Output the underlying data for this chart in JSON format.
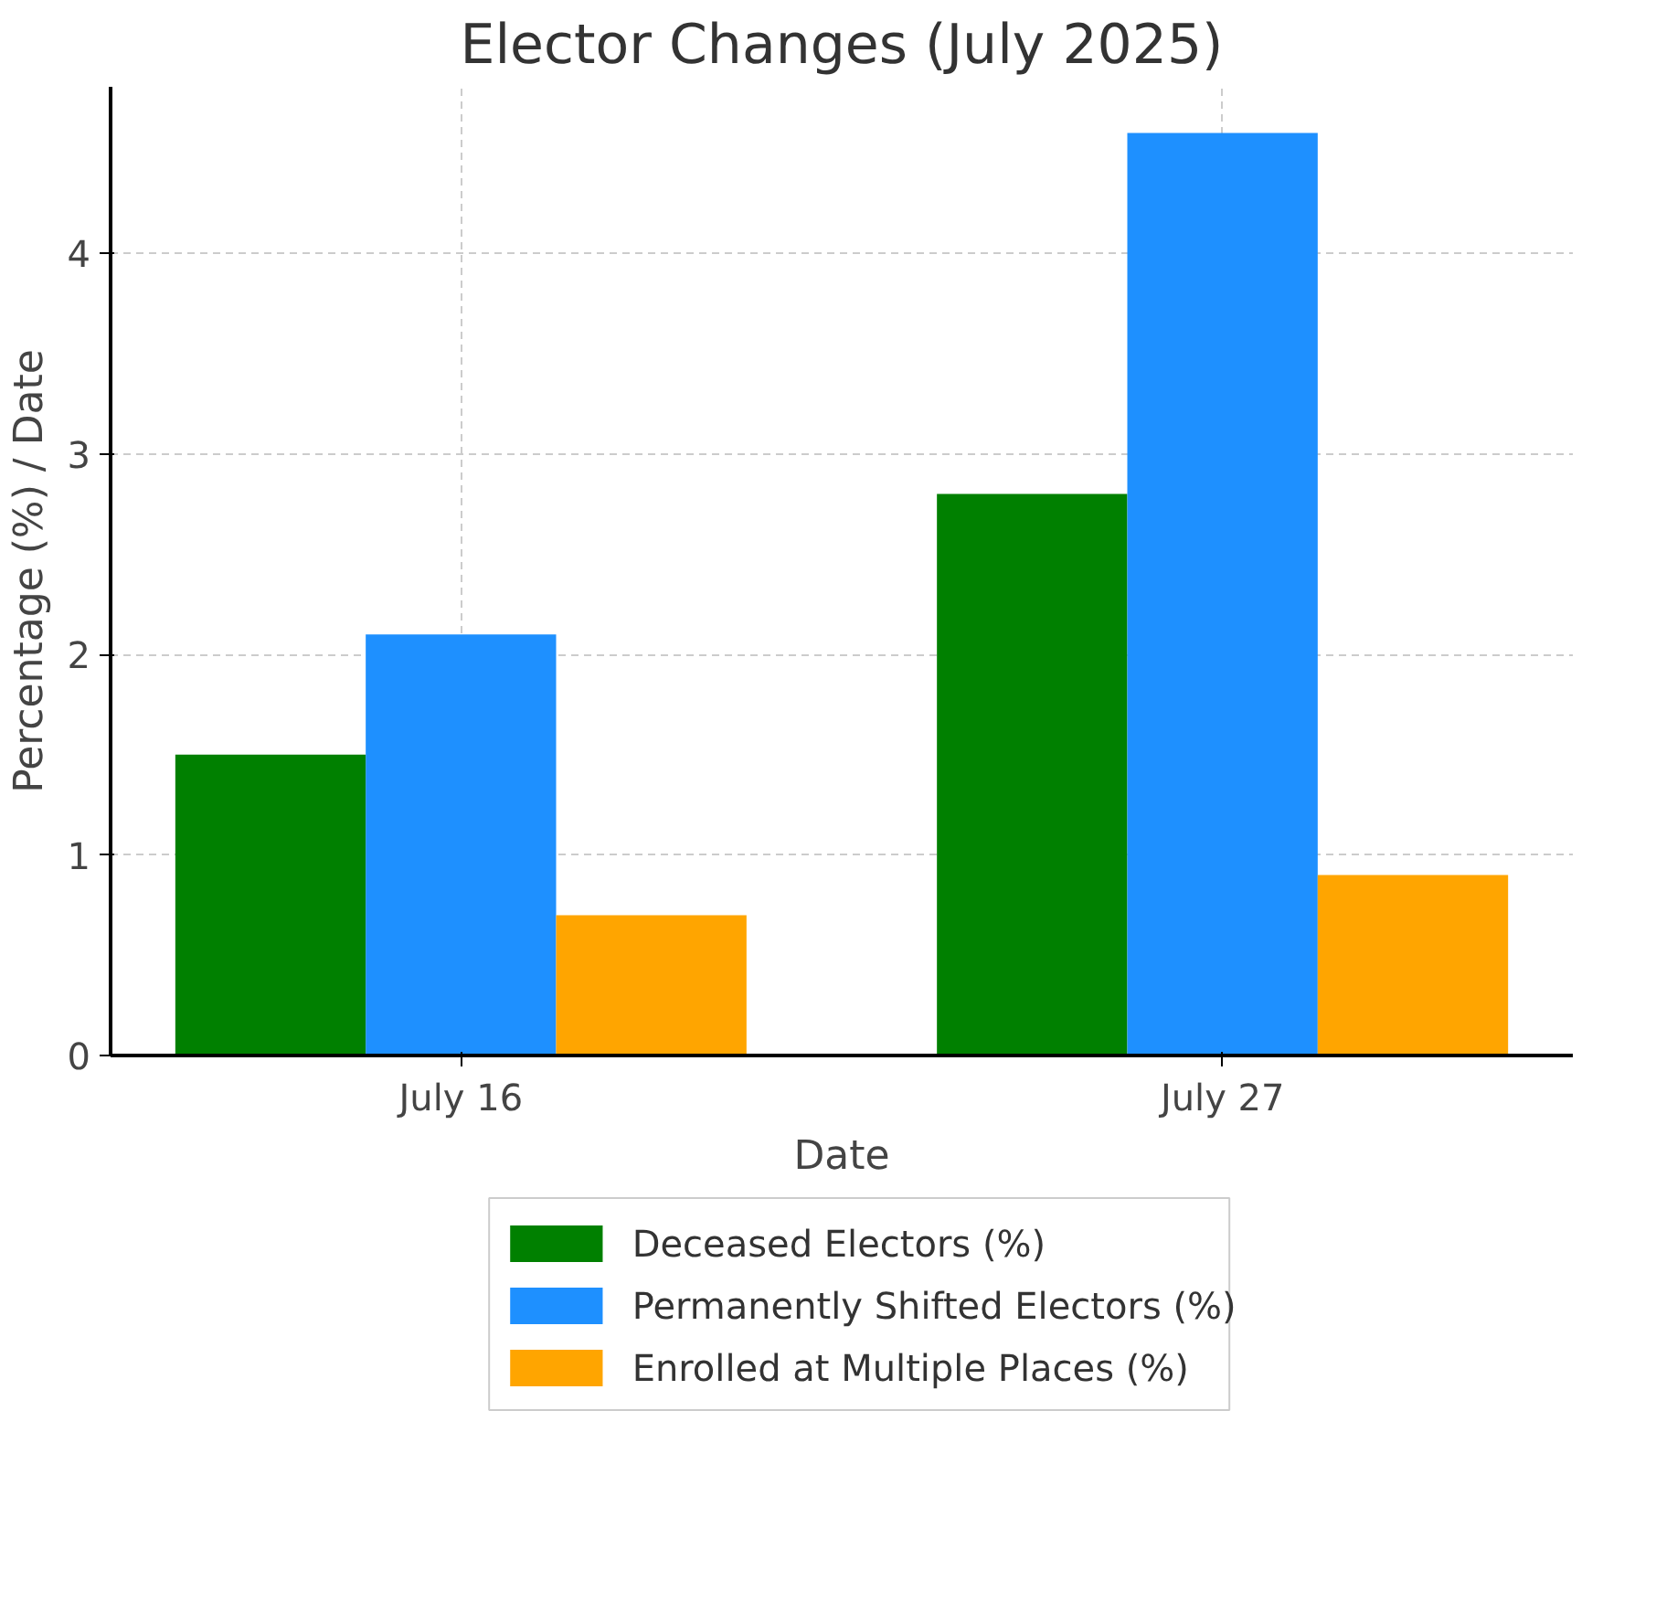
{
  "chart_data": {
    "type": "bar",
    "title": "Elector Changes (July 2025)",
    "xlabel": "Date",
    "ylabel": "Percentage (%) / Date",
    "categories": [
      "July 16",
      "July 27"
    ],
    "series": [
      {
        "name": "Deceased Electors (%)",
        "color": "#008000",
        "values": [
          1.5,
          2.8
        ]
      },
      {
        "name": "Permanently Shifted Electors (%)",
        "color": "#1e90ff",
        "values": [
          2.1,
          4.6
        ]
      },
      {
        "name": "Enrolled at Multiple Places (%)",
        "color": "#ffa500",
        "values": [
          0.7,
          0.9
        ]
      }
    ],
    "ylim": [
      0,
      4.83
    ],
    "yticks": [
      0,
      1,
      2,
      3,
      4
    ],
    "grid": true,
    "legend": "bottom"
  }
}
